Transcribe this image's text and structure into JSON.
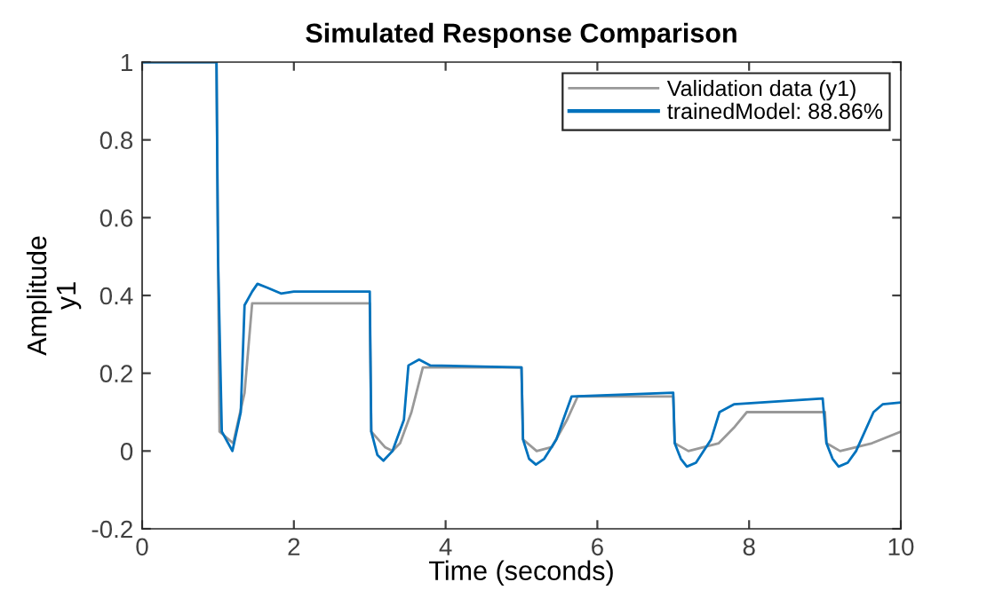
{
  "chart_data": {
    "type": "line",
    "title": "Simulated Response Comparison",
    "xlabel": "Time (seconds)",
    "ylabel": "Amplitude\ny1",
    "xlim": [
      0,
      10
    ],
    "ylim": [
      -0.2,
      1
    ],
    "xticks": [
      0,
      2,
      4,
      6,
      8,
      10
    ],
    "yticks": [
      -0.2,
      0,
      0.2,
      0.4,
      0.6,
      0.8,
      1
    ],
    "grid": false,
    "legend": "top right",
    "line_style": "solid",
    "marker": "none",
    "series": [
      {
        "name": "Validation data (y1)",
        "color": "#999999",
        "x": [
          0,
          0.98,
          1.02,
          1.2,
          1.35,
          1.45,
          3.0,
          3.02,
          3.2,
          3.3,
          3.4,
          3.55,
          3.7,
          5.0,
          5.02,
          5.2,
          5.4,
          5.6,
          5.74,
          7.0,
          7.02,
          7.2,
          7.6,
          7.8,
          7.97,
          9.0,
          9.02,
          9.2,
          9.62,
          10
        ],
        "values": [
          1,
          1,
          0.05,
          0.02,
          0.15,
          0.38,
          0.38,
          0.05,
          0.01,
          0.0,
          0.02,
          0.1,
          0.215,
          0.215,
          0.03,
          0.0,
          0.01,
          0.08,
          0.14,
          0.14,
          0.02,
          0.0,
          0.02,
          0.06,
          0.1,
          0.1,
          0.02,
          0.0,
          0.02,
          0.05
        ]
      },
      {
        "name": "trainedModel: 88.86%",
        "color": "#0072bd",
        "x": [
          0,
          0.98,
          1.0,
          1.05,
          1.19,
          1.3,
          1.35,
          1.45,
          1.52,
          1.65,
          1.83,
          2.0,
          3.0,
          3.02,
          3.1,
          3.18,
          3.3,
          3.45,
          3.51,
          3.65,
          3.8,
          5.0,
          5.02,
          5.1,
          5.19,
          5.3,
          5.46,
          5.55,
          5.66,
          7.0,
          7.02,
          7.1,
          7.18,
          7.3,
          7.5,
          7.61,
          7.8,
          8.97,
          9.02,
          9.1,
          9.18,
          9.3,
          9.41,
          9.64,
          9.76,
          10
        ],
        "values": [
          1,
          1,
          0.5,
          0.05,
          0.0,
          0.1,
          0.375,
          0.41,
          0.43,
          0.42,
          0.405,
          0.41,
          0.41,
          0.05,
          -0.01,
          -0.025,
          0.0,
          0.08,
          0.22,
          0.235,
          0.22,
          0.215,
          0.03,
          -0.02,
          -0.035,
          -0.02,
          0.03,
          0.08,
          0.14,
          0.15,
          0.02,
          -0.02,
          -0.04,
          -0.03,
          0.03,
          0.1,
          0.12,
          0.135,
          0.02,
          -0.02,
          -0.04,
          -0.03,
          0.0,
          0.1,
          0.12,
          0.125
        ]
      }
    ]
  }
}
